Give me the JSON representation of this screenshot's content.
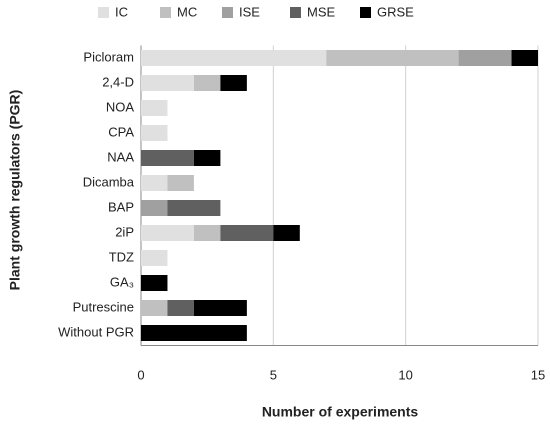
{
  "chart_data": {
    "type": "stacked-barh",
    "categories": [
      "Picloram",
      "2,4-D",
      "NOA",
      "CPA",
      "NAA",
      "Dicamba",
      "BAP",
      "2iP",
      "TDZ",
      "GA₃",
      "Putrescine",
      "Without PGR"
    ],
    "series": [
      {
        "name": "IC",
        "color": "#e0e0e0",
        "values": [
          7,
          2,
          1,
          1,
          0,
          1,
          0,
          2,
          1,
          0,
          0,
          0
        ]
      },
      {
        "name": "MC",
        "color": "#c0c0c0",
        "values": [
          5,
          1,
          0,
          0,
          0,
          1,
          0,
          1,
          0,
          0,
          1,
          0
        ]
      },
      {
        "name": "ISE",
        "color": "#a0a0a0",
        "values": [
          2,
          0,
          0,
          0,
          0,
          0,
          1,
          0,
          0,
          0,
          0,
          0
        ]
      },
      {
        "name": "MSE",
        "color": "#606060",
        "values": [
          0,
          0,
          0,
          0,
          2,
          0,
          2,
          2,
          0,
          0,
          1,
          0
        ]
      },
      {
        "name": "GRSE",
        "color": "#000000",
        "values": [
          1,
          1,
          0,
          0,
          1,
          0,
          0,
          1,
          0,
          1,
          2,
          4
        ]
      }
    ],
    "xlabel": "Number of experiments",
    "ylabel": "Plant growth regulators (PGR)",
    "xlim": [
      0,
      15
    ],
    "xticks": [
      0,
      5,
      10,
      15
    ],
    "grid": true
  }
}
